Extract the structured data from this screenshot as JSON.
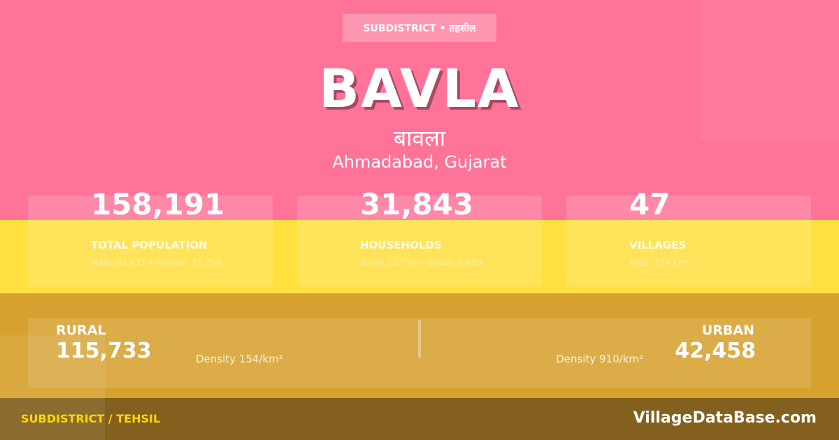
{
  "colors": {
    "pink": "#ff7399",
    "yellow": "#ffe03f",
    "mustard": "#d6a12f",
    "footer": "#84601f",
    "footer_label": "#ffd700"
  },
  "badge": "SUBDISTRICT • तहसील",
  "title": "BAVLA",
  "title_hindi": "बावला",
  "location": "Ahmadabad, Gujarat",
  "stats": [
    {
      "value": "158,191",
      "label": "TOTAL POPULATION",
      "sub": "Male: 82,432 • Female: 75,759"
    },
    {
      "value": "31,843",
      "label": "HOUSEHOLDS",
      "sub": "Rural: 22,754 • Urban: 9,089"
    },
    {
      "value": "47",
      "label": "VILLAGES",
      "sub": "Area: 799 km²"
    }
  ],
  "rural": {
    "label": "RURAL",
    "value": "115,733",
    "density": "Density 154/km²"
  },
  "urban": {
    "label": "URBAN",
    "value": "42,458",
    "density": "Density 910/km²"
  },
  "footer": {
    "left": "SUBDISTRICT / TEHSIL",
    "right": "VillageDataBase.com"
  }
}
